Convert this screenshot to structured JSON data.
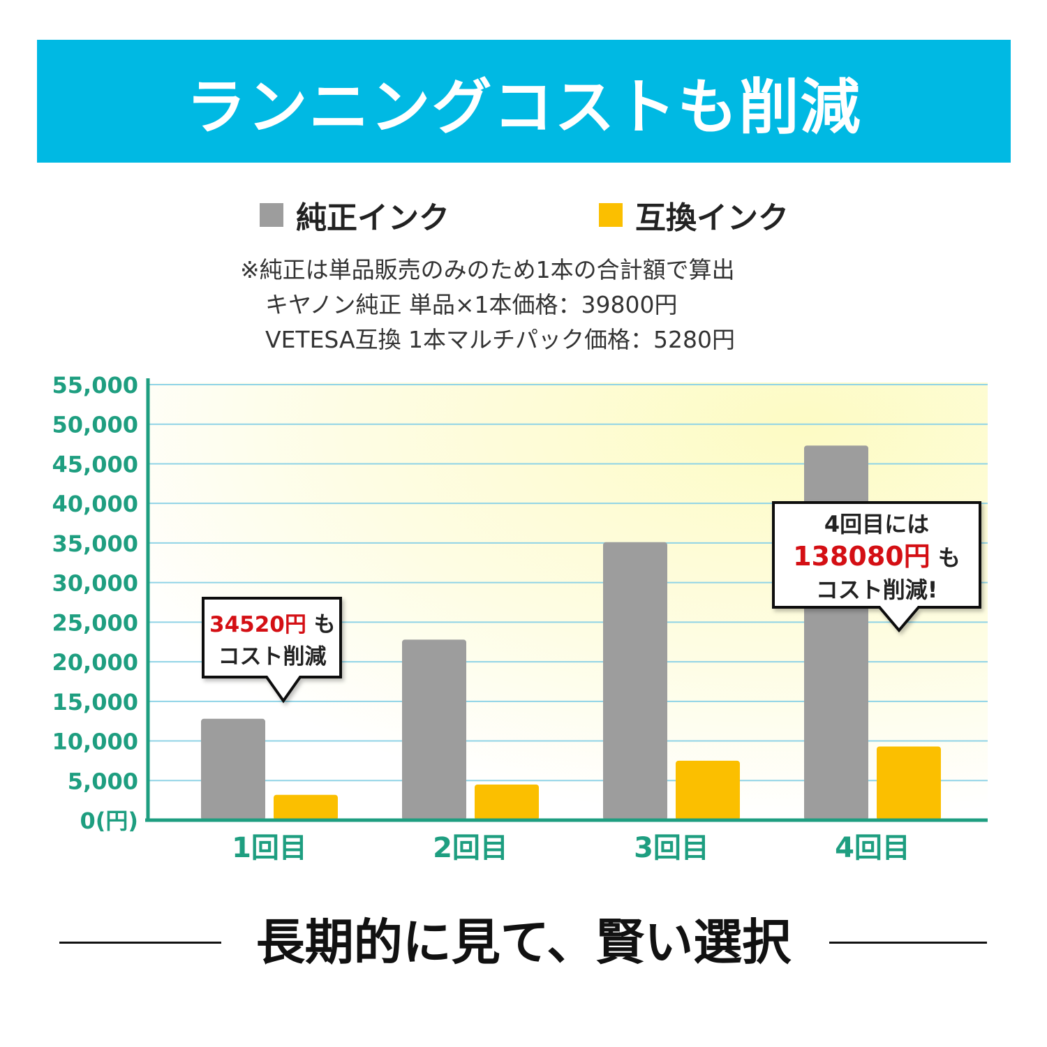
{
  "header": {
    "title": "ランニングコストも削減"
  },
  "legend": [
    {
      "label": "純正インク",
      "color": "#9d9d9d"
    },
    {
      "label": "互換インク",
      "color": "#fbbf00"
    }
  ],
  "note": {
    "line1": "※純正は単品販売のみのため1本の合計額で算出",
    "line2": "キヤノン純正 単品×1本価格：39800円",
    "line3": "VETESA互換 1本マルチパック価格：5280円"
  },
  "chart_data": {
    "type": "bar",
    "categories": [
      "1回目",
      "2回目",
      "3回目",
      "4回目"
    ],
    "series": [
      {
        "name": "純正インク",
        "values": [
          12800,
          22800,
          35100,
          47300
        ],
        "color": "#9d9d9d"
      },
      {
        "name": "互換インク",
        "values": [
          3200,
          4500,
          7500,
          9300
        ],
        "color": "#fbbf00"
      }
    ],
    "ylim": [
      0,
      55000
    ],
    "yticks": [
      "0(円)",
      "5,000",
      "10,000",
      "15,000",
      "20,000",
      "25,000",
      "30,000",
      "35,000",
      "40,000",
      "45,000",
      "50,000",
      "55,000"
    ],
    "axis_color": "#1e9e80",
    "grid": true
  },
  "callouts": {
    "first": {
      "amount": "34520円",
      "suffix": "も",
      "line2": "コスト削減"
    },
    "second": {
      "line1": "4回目には",
      "amount": "138080円",
      "suffix": "も",
      "line3": "コスト削減!"
    }
  },
  "footer": {
    "text": "長期的に見て、賢い選択"
  }
}
